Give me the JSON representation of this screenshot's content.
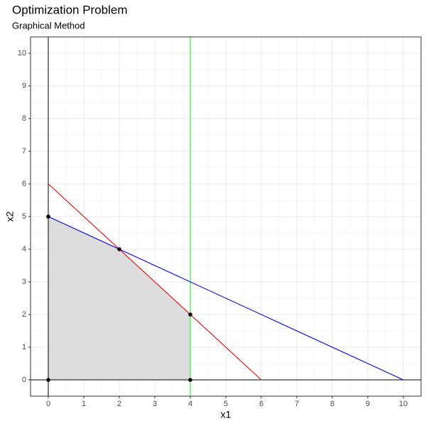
{
  "chart_data": {
    "type": "line",
    "title": "Optimization Problem",
    "subtitle": "Graphical Method",
    "x_label": "x1",
    "y_label": "x2",
    "xlim": [
      -0.5,
      10.5
    ],
    "ylim": [
      -0.5,
      10.5
    ],
    "xticks": [
      0,
      1,
      2,
      3,
      4,
      5,
      6,
      7,
      8,
      9,
      10
    ],
    "yticks": [
      0,
      1,
      2,
      3,
      4,
      5,
      6,
      7,
      8,
      9,
      10
    ],
    "grid": true,
    "region": {
      "color": "#dddddd",
      "x": [
        0,
        0,
        2,
        4,
        4
      ],
      "y": [
        0,
        5,
        4,
        2,
        0
      ]
    },
    "series": [
      {
        "color": "#ff0000",
        "x": [
          0,
          6
        ],
        "values": [
          6,
          0
        ]
      },
      {
        "color": "#0000ff",
        "x": [
          0,
          10
        ],
        "values": [
          5,
          0
        ]
      }
    ],
    "vlines": [
      {
        "x": 0,
        "color": "#000000"
      },
      {
        "x": 4,
        "color": "#00ff00"
      }
    ],
    "hlines": [
      {
        "y": 0,
        "color": "#000000"
      }
    ],
    "points": {
      "color": "#000000",
      "x": [
        0,
        0,
        2,
        4,
        4
      ],
      "y": [
        0,
        5,
        4,
        2,
        0
      ]
    }
  }
}
